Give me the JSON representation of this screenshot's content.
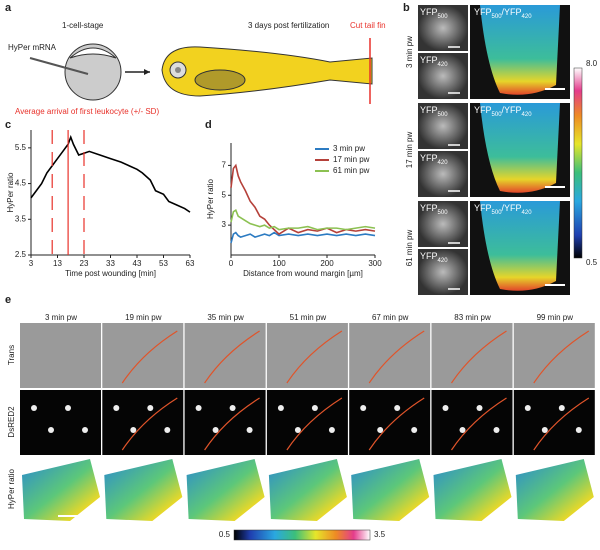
{
  "panel_labels": [
    "a",
    "b",
    "c",
    "d",
    "e"
  ],
  "panel_a": {
    "stage": "1-cell-stage",
    "injection": "HyPer mRNA",
    "age": "3 days post fertilization",
    "cut": "Cut tail fin"
  },
  "panel_b": {
    "rows": [
      "3 min pw",
      "17 min pw",
      "61 min pw"
    ],
    "channel_top": [
      "YFP",
      "500"
    ],
    "channel_bottom": [
      "YFP",
      "420"
    ],
    "ratio": [
      "YFP",
      "500",
      "/YFP",
      "420"
    ],
    "colorbar_ticks": [
      {
        "value": 8,
        "label": "8.0"
      },
      0.5
    ]
  },
  "chart_data": [
    {
      "type": "line",
      "xlabel": "Time post wounding [min]",
      "ylabel": "HyPer ratio",
      "annotation": "Average arrival of first leukocyte  (+/- SD)",
      "x": [
        3,
        5,
        7,
        9,
        11,
        13,
        15,
        17,
        18,
        19,
        21,
        23,
        25,
        29,
        33,
        37,
        40,
        43,
        45,
        48,
        50,
        53,
        55,
        58,
        61,
        63
      ],
      "values": [
        4.1,
        4.3,
        4.5,
        4.8,
        5.0,
        5.2,
        5.4,
        5.6,
        5.8,
        5.6,
        5.3,
        5.35,
        5.4,
        5.3,
        5.2,
        5.1,
        5.0,
        4.9,
        4.8,
        4.6,
        4.3,
        4.2,
        4.0,
        3.9,
        3.8,
        3.7
      ],
      "color": "#000000",
      "arrival_mean": 17,
      "arrival_sd_bounds": [
        11,
        23
      ],
      "marker_color": "#e8312a",
      "xlim": [
        3,
        63
      ],
      "xticks": [
        3,
        13,
        23,
        33,
        43,
        53,
        63
      ],
      "ylim": [
        2.5,
        6
      ],
      "yticks": [
        2.5,
        3.5,
        4.5,
        5.5
      ]
    },
    {
      "type": "line",
      "xlabel": "Distance from wound margin [µm]",
      "ylabel": "HyPer ratio",
      "x": [
        0,
        5,
        10,
        15,
        20,
        30,
        40,
        50,
        60,
        70,
        80,
        90,
        100,
        120,
        140,
        160,
        180,
        200,
        220,
        240,
        260,
        280,
        300
      ],
      "series": [
        {
          "name": "3 min pw",
          "color": "#2c7bc2",
          "values": [
            1.8,
            2.4,
            2.5,
            2.3,
            2.2,
            2.3,
            2.4,
            2.2,
            2.3,
            2.4,
            2.3,
            2.5,
            2.3,
            2.4,
            2.3,
            2.4,
            2.3,
            2.4,
            2.3,
            2.4,
            2.3,
            2.4,
            2.3
          ]
        },
        {
          "name": "17 min pw",
          "color": "#b5413a",
          "values": [
            5.5,
            6.8,
            7.0,
            6.3,
            5.9,
            5.3,
            4.6,
            4.2,
            3.6,
            3.4,
            3.0,
            2.7,
            2.4,
            2.8,
            2.5,
            2.7,
            2.6,
            2.8,
            2.5,
            2.7,
            2.6,
            2.7,
            2.6
          ]
        },
        {
          "name": "61 min pw",
          "color": "#8cc152",
          "values": [
            3.2,
            3.9,
            4.0,
            3.6,
            3.5,
            3.3,
            3.1,
            3.0,
            2.9,
            3.0,
            2.8,
            2.9,
            2.7,
            2.8,
            2.8,
            2.9,
            2.7,
            2.8,
            2.8,
            2.7,
            2.8,
            2.9,
            2.8
          ]
        }
      ],
      "xlim": [
        0,
        300
      ],
      "xticks": [
        0,
        100,
        200,
        300
      ],
      "ylim": [
        1,
        8.5
      ],
      "yticks": [
        3,
        5,
        7
      ]
    }
  ],
  "panel_e": {
    "columns": [
      "3 min pw",
      "19 min pw",
      "35 min pw",
      "51 min pw",
      "67 min pw",
      "83 min pw",
      "99 min pw"
    ],
    "rows": [
      "Trans",
      "DsRED2",
      "HyPer ratio"
    ],
    "colorbar_ticks": [
      0.5,
      3.5
    ]
  }
}
